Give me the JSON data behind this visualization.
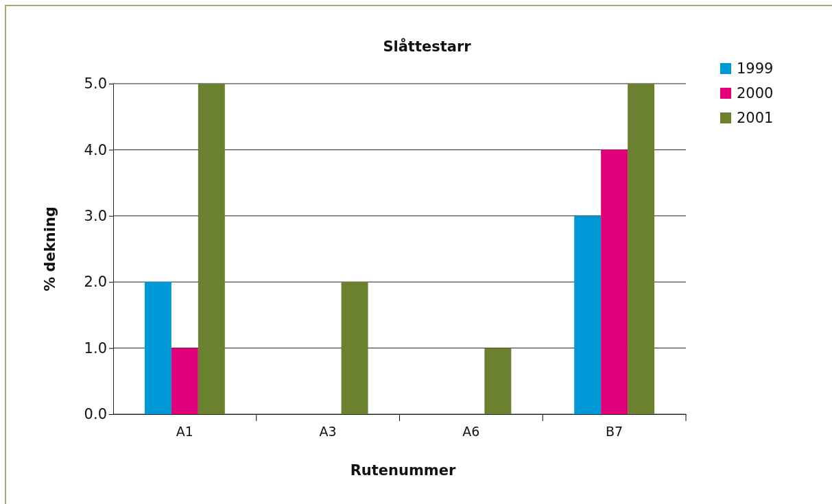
{
  "chart_data": {
    "type": "bar",
    "title": "Slåttestarr",
    "xlabel": "Rutenummer",
    "ylabel": "% dekning",
    "categories": [
      "A1",
      "A3",
      "A6",
      "B7"
    ],
    "series": [
      {
        "name": "1999",
        "color": "#0099d8",
        "values": [
          2,
          0,
          0,
          3
        ]
      },
      {
        "name": "2000",
        "color": "#e2007a",
        "values": [
          1,
          0,
          0,
          4
        ]
      },
      {
        "name": "2001",
        "color": "#6b8130",
        "values": [
          5,
          2,
          1,
          5
        ]
      }
    ],
    "ylim": [
      0,
      5
    ],
    "yticks": [
      {
        "value": 0,
        "label": "0.0"
      },
      {
        "value": 1,
        "label": "1.0"
      },
      {
        "value": 2,
        "label": "2.0"
      },
      {
        "value": 3,
        "label": "3.0"
      },
      {
        "value": 4,
        "label": "4.0"
      },
      {
        "value": 5,
        "label": "5.0"
      }
    ],
    "grid": "y",
    "legend": "top right"
  }
}
